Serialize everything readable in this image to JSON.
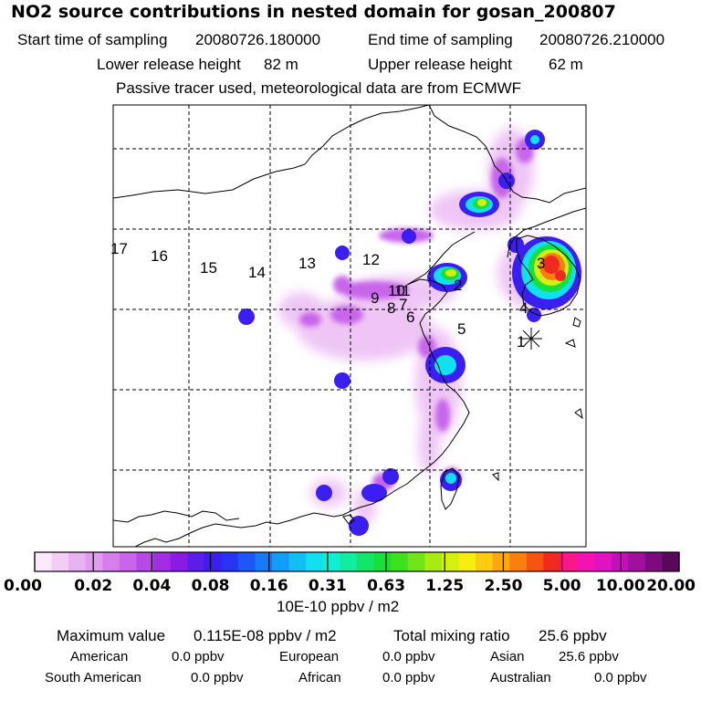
{
  "header": {
    "title": "NO2 source contributions in nested domain for gosan_200807",
    "start_label": "Start time of sampling",
    "start_value": "20080726.180000",
    "end_label": "End time of sampling",
    "end_value": "20080726.210000",
    "lower_label": "Lower release height",
    "lower_value": "82 m",
    "upper_label": "Upper release height",
    "upper_value": "62 m",
    "note": "Passive tracer used, meteorological data are from ECMWF"
  },
  "map": {
    "receptor_marker": "asterisk-marker",
    "trajectory_labels": [
      "1",
      "2",
      "3",
      "4",
      "5",
      "6",
      "7",
      "8",
      "9",
      "10",
      "11",
      "12",
      "13",
      "14",
      "15",
      "16",
      "17"
    ]
  },
  "colorbar": {
    "colors": [
      "#fbe9fb",
      "#f3cdf6",
      "#e9b2f2",
      "#e09cef",
      "#d57eec",
      "#c865ea",
      "#b74ae6",
      "#a12ee2",
      "#8a1be2",
      "#5d1de8",
      "#3b1ef0",
      "#2834f4",
      "#1d57f7",
      "#1679f8",
      "#149df8",
      "#12bff5",
      "#10e0f0",
      "#10efd2",
      "#11ec9f",
      "#12e56a",
      "#17e03c",
      "#3fe020",
      "#73e417",
      "#a6eb13",
      "#d4ef11",
      "#f7ed10",
      "#fbcc10",
      "#fba710",
      "#f98010",
      "#f55513",
      "#ef2a20",
      "#f8188a",
      "#f313b0",
      "#e012c2",
      "#c410b8",
      "#a10f9e",
      "#7c0c7c",
      "#5a085a"
    ],
    "ticks": [
      "0.00",
      "0.02",
      "0.04",
      "0.08",
      "0.16",
      "0.31",
      "0.63",
      "1.25",
      "2.50",
      "5.00",
      "10.00",
      "20.00"
    ],
    "units": "10E-10 ppbv / m2"
  },
  "stats": {
    "max_label": "Maximum value",
    "max_value": "0.115E-08 ppbv / m2",
    "total_label": "Total mixing ratio",
    "total_value": "25.6 ppbv",
    "rows": [
      [
        {
          "label": "American",
          "value": "0.0 ppbv"
        },
        {
          "label": "European",
          "value": "0.0 ppbv"
        },
        {
          "label": "Asian",
          "value": "25.6 ppbv"
        }
      ],
      [
        {
          "label": "South American",
          "value": "0.0 ppbv"
        },
        {
          "label": "African",
          "value": "0.0 ppbv"
        },
        {
          "label": "Australian",
          "value": "0.0 ppbv"
        }
      ]
    ]
  }
}
